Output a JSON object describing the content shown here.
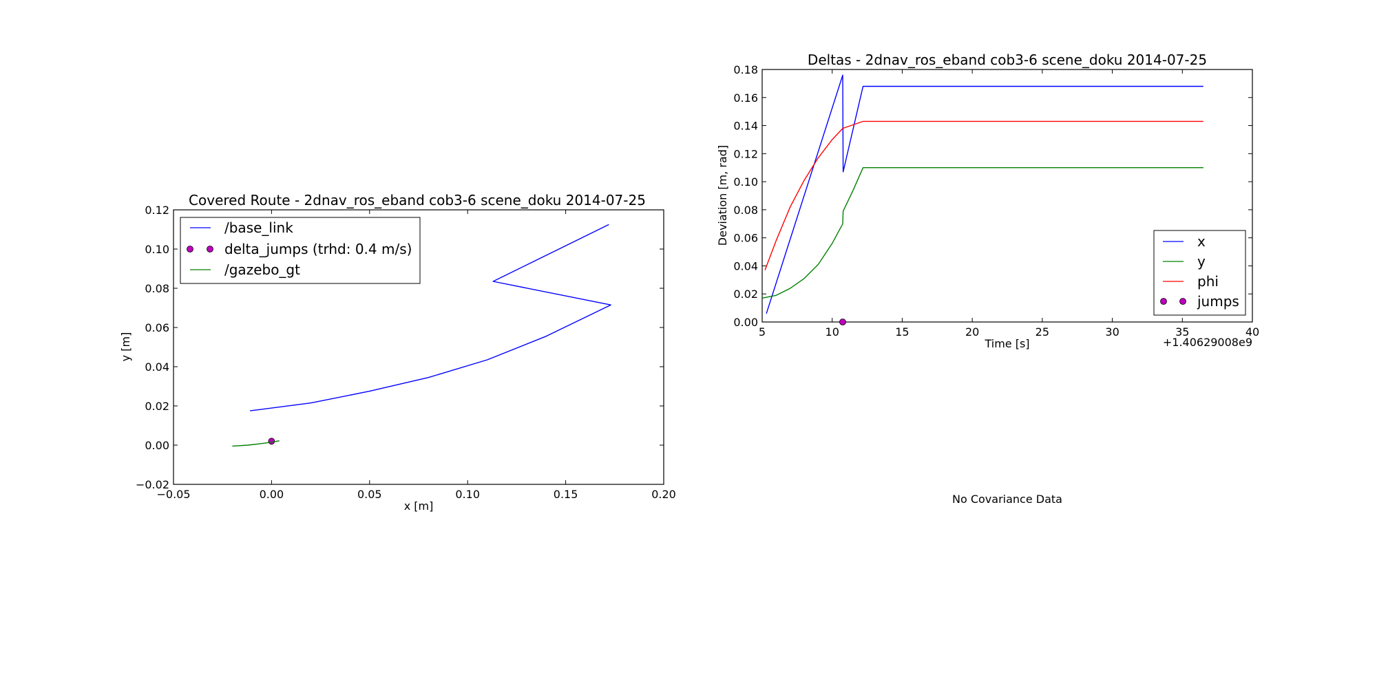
{
  "chart_data": [
    {
      "type": "line",
      "title": "Covered Route - 2dnav_ros_eband cob3-6 scene_doku 2014-07-25",
      "xlabel": "x [m]",
      "ylabel": "y [m]",
      "xlim": [
        -0.05,
        0.2
      ],
      "ylim": [
        -0.02,
        0.12
      ],
      "xticks": [
        -0.05,
        0.0,
        0.05,
        0.1,
        0.15,
        0.2
      ],
      "yticks": [
        -0.02,
        0.0,
        0.02,
        0.04,
        0.06,
        0.08,
        0.1,
        0.12
      ],
      "xtick_labels": [
        "−0.05",
        "0.00",
        "0.05",
        "0.10",
        "0.15",
        "0.20"
      ],
      "ytick_labels": [
        "−0.02",
        "0.00",
        "0.02",
        "0.04",
        "0.06",
        "0.08",
        "0.10",
        "0.12"
      ],
      "legend": {
        "position": "upper-left",
        "entries": [
          "/base_link",
          "delta_jumps (trhd: 0.4 m/s)",
          "/gazebo_gt"
        ]
      },
      "series": [
        {
          "name": "/base_link",
          "kind": "line",
          "color": "#0000ff",
          "x": [
            -0.011,
            0.02,
            0.05,
            0.08,
            0.11,
            0.14,
            0.173,
            0.113,
            0.172
          ],
          "y": [
            0.0175,
            0.0215,
            0.0275,
            0.0345,
            0.0435,
            0.0555,
            0.0715,
            0.0835,
            0.1125
          ]
        },
        {
          "name": "delta_jumps (trhd: 0.4 m/s)",
          "kind": "scatter",
          "color": "#bf00bf",
          "x": [
            0.0
          ],
          "y": [
            0.002
          ]
        },
        {
          "name": "/gazebo_gt",
          "kind": "line",
          "color": "#008000",
          "x": [
            -0.02,
            -0.012,
            -0.005,
            0.0,
            0.004
          ],
          "y": [
            -0.0005,
            0.0,
            0.0008,
            0.0015,
            0.0022
          ]
        }
      ]
    },
    {
      "type": "line",
      "title": "Deltas - 2dnav_ros_eband cob3-6 scene_doku 2014-07-25",
      "xlabel": "Time [s]",
      "ylabel": "Deviation [m, rad]",
      "x_offset_label": "+1.40629008e9",
      "xlim": [
        5,
        40
      ],
      "ylim": [
        0.0,
        0.18
      ],
      "xticks": [
        5,
        10,
        15,
        20,
        25,
        30,
        35,
        40
      ],
      "yticks": [
        0.0,
        0.02,
        0.04,
        0.06,
        0.08,
        0.1,
        0.12,
        0.14,
        0.16,
        0.18
      ],
      "xtick_labels": [
        "5",
        "10",
        "15",
        "20",
        "25",
        "30",
        "35",
        "40"
      ],
      "ytick_labels": [
        "0.00",
        "0.02",
        "0.04",
        "0.06",
        "0.08",
        "0.10",
        "0.12",
        "0.14",
        "0.16",
        "0.18"
      ],
      "legend": {
        "position": "lower-right",
        "entries": [
          "x",
          "y",
          "phi",
          "jumps"
        ]
      },
      "series": [
        {
          "name": "x",
          "kind": "line",
          "color": "#0000ff",
          "x": [
            5.3,
            10.75,
            10.78,
            12.2,
            36.5
          ],
          "y": [
            0.006,
            0.176,
            0.107,
            0.168,
            0.168
          ]
        },
        {
          "name": "y",
          "kind": "line",
          "color": "#008000",
          "x": [
            5.0,
            6.0,
            7.0,
            8.0,
            9.0,
            10.0,
            10.75,
            10.78,
            11.5,
            12.2,
            36.5
          ],
          "y": [
            0.017,
            0.019,
            0.024,
            0.031,
            0.041,
            0.056,
            0.07,
            0.079,
            0.094,
            0.11,
            0.11
          ]
        },
        {
          "name": "phi",
          "kind": "line",
          "color": "#ff0000",
          "x": [
            5.2,
            6.0,
            7.0,
            8.0,
            9.0,
            10.0,
            10.75,
            12.2,
            36.5
          ],
          "y": [
            0.037,
            0.058,
            0.082,
            0.101,
            0.117,
            0.13,
            0.138,
            0.143,
            0.143
          ]
        },
        {
          "name": "jumps",
          "kind": "scatter",
          "color": "#bf00bf",
          "x": [
            10.75
          ],
          "y": [
            0.0
          ]
        }
      ]
    }
  ],
  "covariance_note": "No Covariance Data"
}
